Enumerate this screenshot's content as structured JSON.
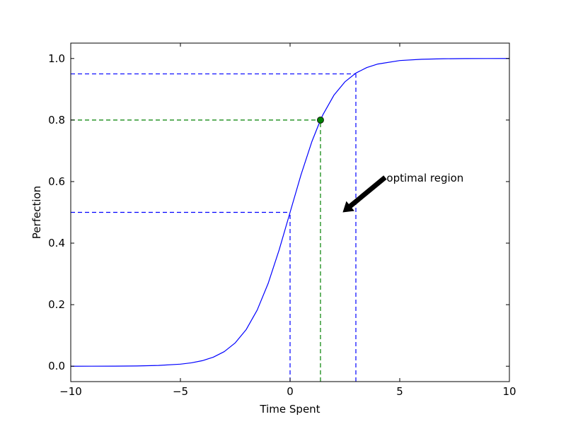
{
  "chart_data": {
    "type": "line",
    "xlabel": "Time Spent",
    "ylabel": "Perfection",
    "xlim": [
      -10,
      10
    ],
    "ylim": [
      -0.05,
      1.05
    ],
    "xticks": [
      -10,
      -5,
      0,
      5,
      10
    ],
    "xtick_labels": [
      "−10",
      "−5",
      "0",
      "5",
      "10"
    ],
    "yticks": [
      0.0,
      0.2,
      0.4,
      0.6,
      0.8,
      1.0
    ],
    "ytick_labels": [
      "0.0",
      "0.2",
      "0.4",
      "0.6",
      "0.8",
      "1.0"
    ],
    "grid": false,
    "series": [
      {
        "color": "#0000ff",
        "x": [
          -10,
          -9,
          -8,
          -7,
          -6,
          -5,
          -4.5,
          -4,
          -3.5,
          -3,
          -2.5,
          -2,
          -1.5,
          -1,
          -0.5,
          0,
          0.5,
          1,
          1.386,
          1.5,
          2,
          2.5,
          3,
          3.5,
          4,
          5,
          6,
          7,
          8,
          9,
          10
        ],
        "y": [
          0.0,
          0.0001,
          0.0003,
          0.0009,
          0.0025,
          0.0067,
          0.011,
          0.018,
          0.0293,
          0.0474,
          0.0759,
          0.1192,
          0.1824,
          0.2689,
          0.3775,
          0.5,
          0.6225,
          0.7311,
          0.8,
          0.8176,
          0.8808,
          0.9241,
          0.9526,
          0.9707,
          0.982,
          0.9933,
          0.9975,
          0.9991,
          0.9997,
          0.9999,
          1.0
        ]
      }
    ],
    "reference_lines": [
      {
        "color": "#0000ff",
        "x": 0,
        "y": 0.5
      },
      {
        "color": "#0000ff",
        "x": 3,
        "y": 0.95
      },
      {
        "color": "#008000",
        "x": 1.386,
        "y": 0.8
      }
    ],
    "highlight_point": {
      "x": 1.386,
      "y": 0.8,
      "color": "#008000"
    },
    "annotation": {
      "text": "optimal region",
      "text_x": 4.4,
      "text_y": 0.6,
      "arrow_x": 2.4,
      "arrow_y": 0.5
    }
  }
}
